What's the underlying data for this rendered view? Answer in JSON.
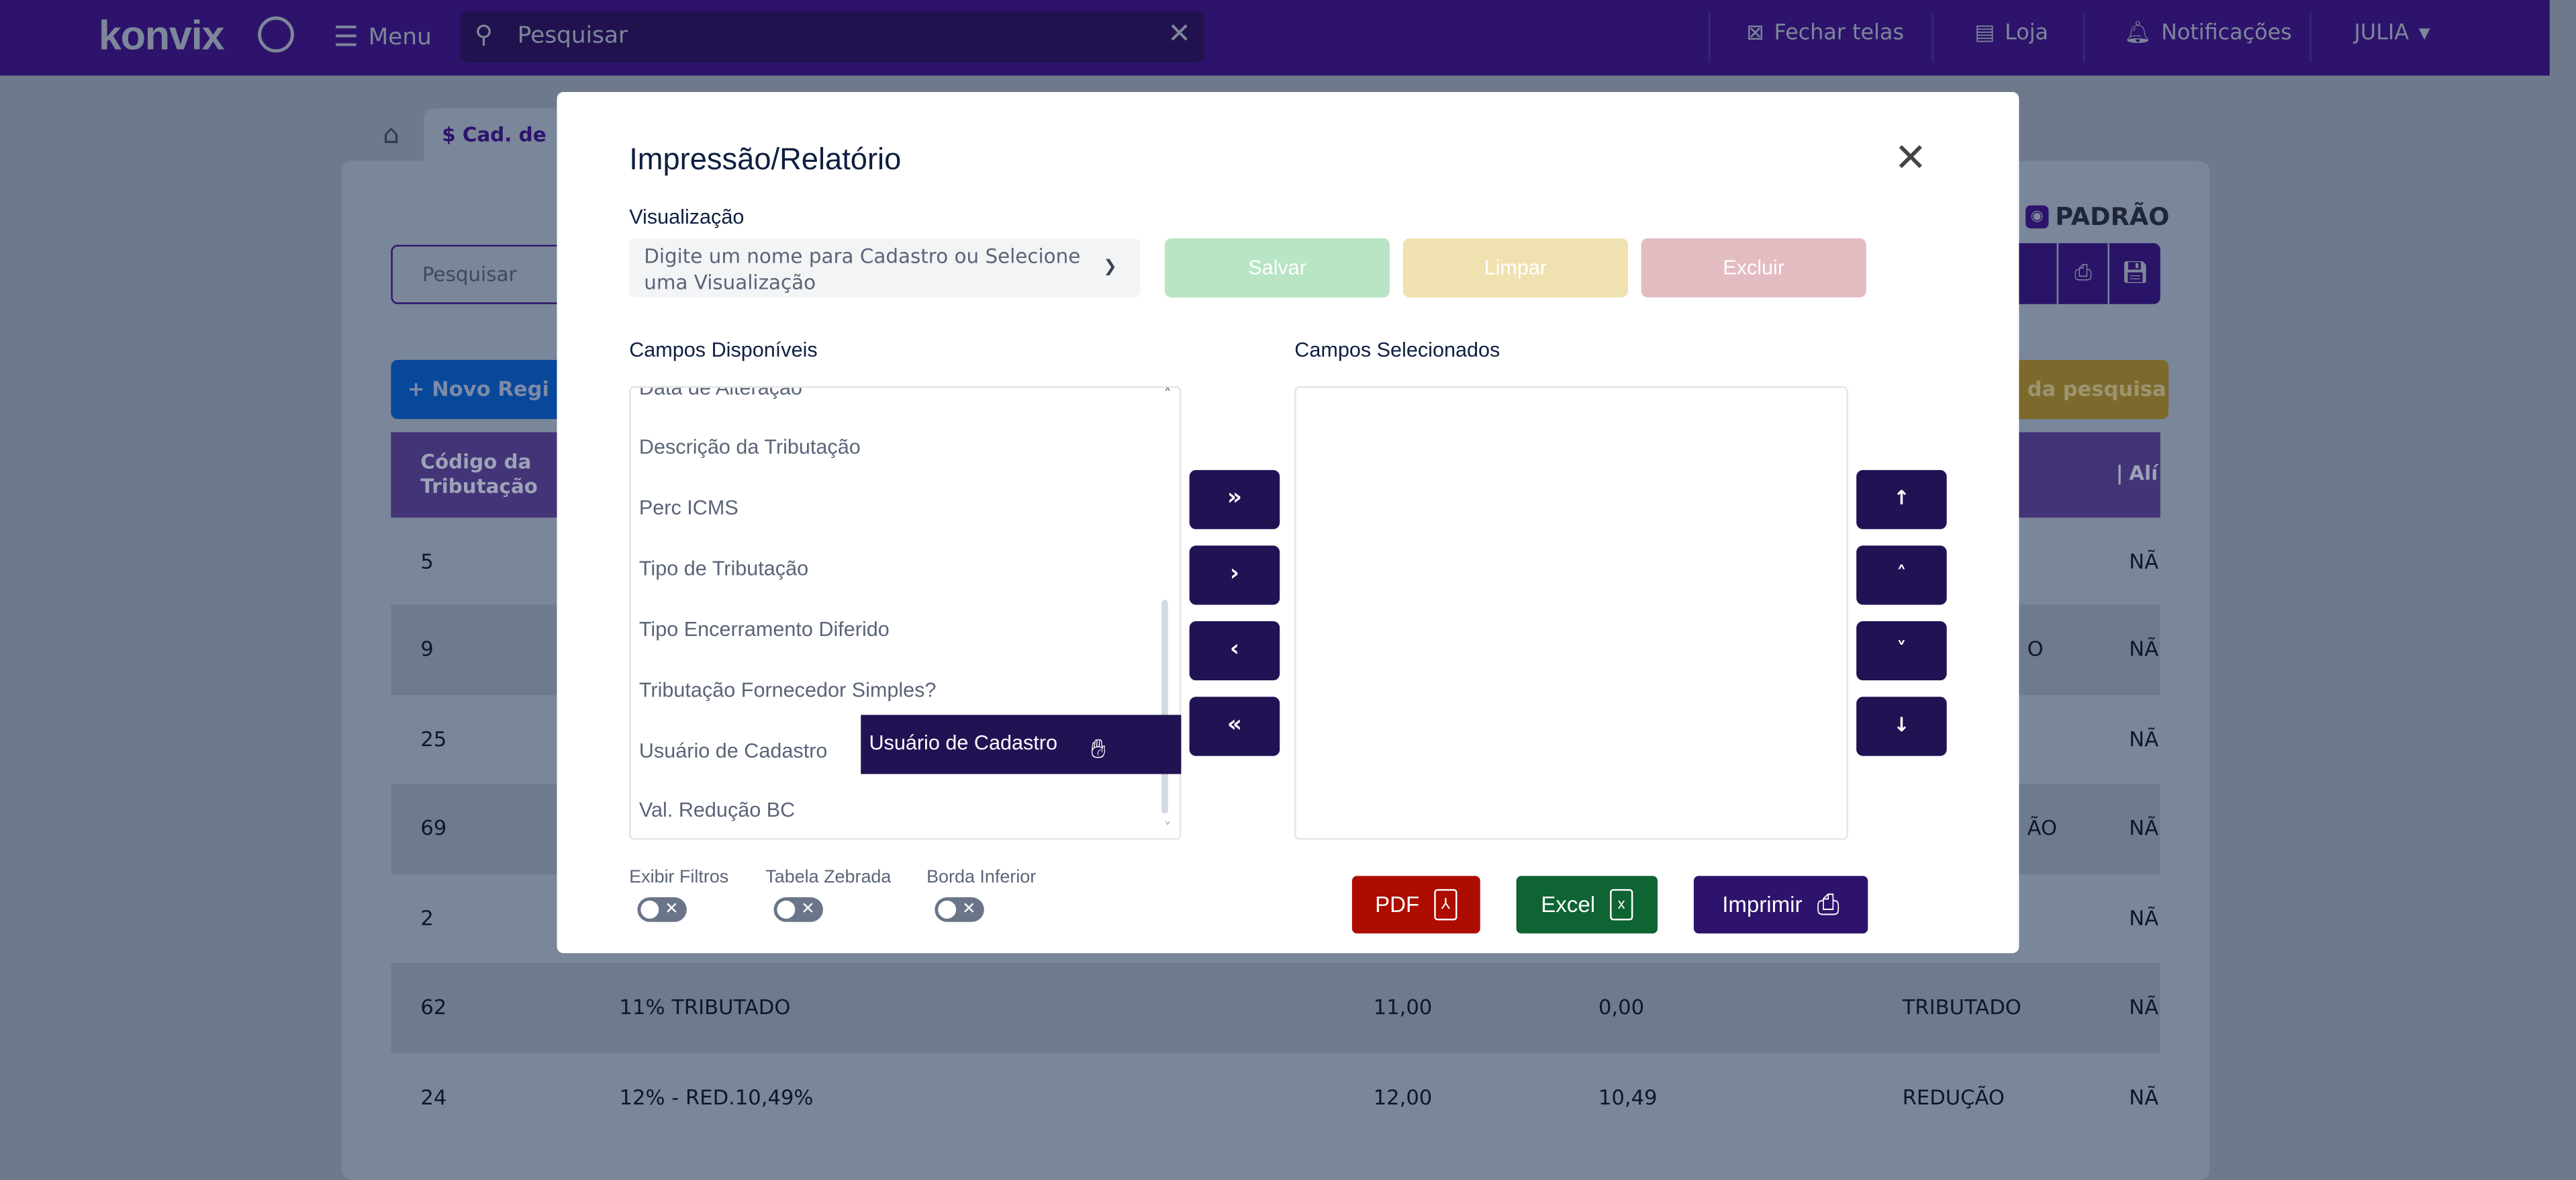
{
  "topbar": {
    "logo": "KONVIX",
    "menu_label": "Menu",
    "search_placeholder": "Pesquisar",
    "close_screens": "Fechar telas",
    "store": "Loja",
    "notifications": "Notificações",
    "user": "JULIA"
  },
  "page": {
    "tab_label": "Cad. de",
    "search_placeholder": "Pesquisar",
    "new_button": "Novo Regi",
    "view_label": "PADRÃO",
    "yellow_button": "da pesquisa",
    "table": {
      "header_code": "Código da Tributação",
      "header_last": "Alí",
      "rows": [
        {
          "code": "5",
          "desc": "",
          "v1": "",
          "v2": "",
          "type": "",
          "last": "NÃ"
        },
        {
          "code": "9",
          "desc": "",
          "v1": "",
          "v2": "",
          "type": "O",
          "last": "NÃ"
        },
        {
          "code": "25",
          "desc": "",
          "v1": "",
          "v2": "",
          "type": "",
          "last": "NÃ"
        },
        {
          "code": "69",
          "desc": "",
          "v1": "",
          "v2": "",
          "type": "ÃO",
          "last": "NÃ"
        },
        {
          "code": "2",
          "desc": "",
          "v1": "",
          "v2": "",
          "type": "",
          "last": "NÃ"
        },
        {
          "code": "62",
          "desc": "11% TRIBUTADO",
          "v1": "11,00",
          "v2": "0,00",
          "type": "TRIBUTADO",
          "last": "NÃ"
        },
        {
          "code": "24",
          "desc": "12% - RED.10,49%",
          "v1": "12,00",
          "v2": "10,49",
          "type": "REDUÇÃO",
          "last": "NÃ"
        }
      ]
    }
  },
  "modal": {
    "title": "Impressão/Relatório",
    "view_label": "Visualização",
    "view_placeholder": "Digite um nome para Cadastro ou Selecione uma Visualização",
    "save": "Salvar",
    "clear": "Limpar",
    "delete": "Excluir",
    "available_label": "Campos Disponíveis",
    "selected_label": "Campos Selecionados",
    "available_fields": [
      "Data de Alteração",
      "Descrição da Tributação",
      "Perc ICMS",
      "Tipo de Tributação",
      "Tipo Encerramento Diferido",
      "Tributação Fornecedor Simples?",
      "Usuário de Cadastro",
      "Val. Redução BC"
    ],
    "dragging_item": "Usuário de Cadastro",
    "move_buttons": [
      "»",
      "›",
      "‹",
      "«"
    ],
    "order_buttons": [
      "↑",
      "˄",
      "˅",
      "↓"
    ],
    "toggles": [
      {
        "label": "Exibir Filtros",
        "on": false
      },
      {
        "label": "Tabela Zebrada",
        "on": false
      },
      {
        "label": "Borda Inferior",
        "on": false
      }
    ],
    "pdf": "PDF",
    "excel": "Excel",
    "print": "Imprimir",
    "colors": {
      "save": "#b8e5c4",
      "clear": "#f0e1b0",
      "delete": "#e3bcc1",
      "pdf": "#ad0d00",
      "excel": "#0e6433",
      "print": "#2d136c",
      "primary": "#211254"
    }
  }
}
